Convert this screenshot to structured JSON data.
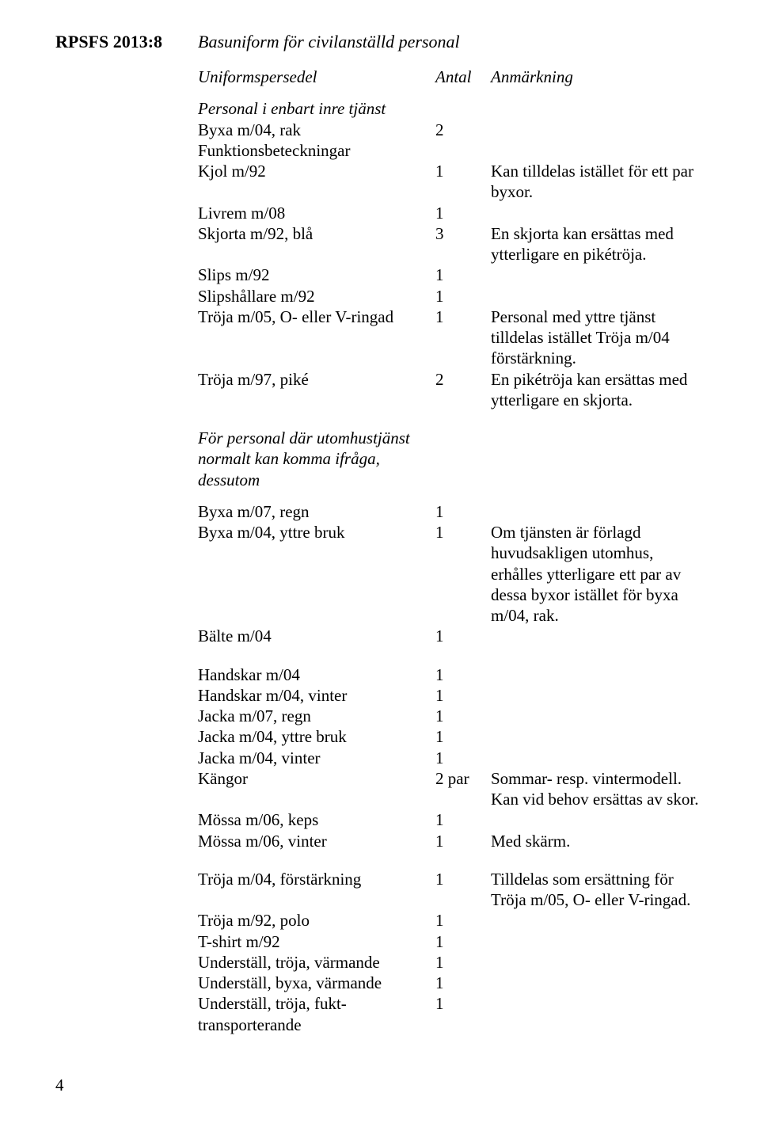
{
  "doc_id": "RPSFS 2013:8",
  "section_title": "Basuniform för civilanställd personal",
  "headers": {
    "item": "Uniformspersedel",
    "qty": "Antal",
    "note": "Anmärkning"
  },
  "subheading_a": "Personal i enbart inre tjänst",
  "rows_a": [
    {
      "item": "Byxa m/04, rak",
      "qty": "2",
      "note": ""
    },
    {
      "item": "Funktionsbeteckningar",
      "qty": "",
      "note": ""
    },
    {
      "item": "Kjol m/92",
      "qty": "1",
      "note": "Kan tilldelas istället för ett par byxor."
    },
    {
      "item": "Livrem m/08",
      "qty": "1",
      "note": ""
    },
    {
      "item": "Skjorta m/92, blå",
      "qty": "3",
      "note": "En skjorta kan ersättas med ytterligare en pikétröja."
    },
    {
      "item": "Slips m/92",
      "qty": "1",
      "note": ""
    },
    {
      "item": "Slipshållare m/92",
      "qty": "1",
      "note": ""
    },
    {
      "item": "Tröja m/05, O- eller V-ringad",
      "qty": "1",
      "note": "Personal med yttre tjänst tilldelas istället Tröja m/04 förstärkning."
    },
    {
      "item": "Tröja m/97, piké",
      "qty": "2",
      "note": "En pikétröja kan ersättas med ytterligare en skjorta."
    }
  ],
  "subheading_b": "För personal där utomhustjänst normalt kan komma ifråga, dessutom",
  "rows_b": [
    {
      "item": "Byxa m/07, regn",
      "qty": "1",
      "note": ""
    },
    {
      "item": "Byxa m/04, yttre bruk",
      "qty": "1",
      "note": "Om tjänsten är förlagd huvudsakligen utomhus, erhålles ytterligare ett par av dessa byxor istället för byxa m/04, rak."
    },
    {
      "item": "Bälte m/04",
      "qty": "1",
      "note": ""
    }
  ],
  "rows_c": [
    {
      "item": "Handskar m/04",
      "qty": "1",
      "note": ""
    },
    {
      "item": "Handskar m/04, vinter",
      "qty": "1",
      "note": ""
    },
    {
      "item": "Jacka m/07, regn",
      "qty": "1",
      "note": ""
    },
    {
      "item": "Jacka m/04, yttre bruk",
      "qty": "1",
      "note": ""
    },
    {
      "item": "Jacka m/04, vinter",
      "qty": "1",
      "note": ""
    },
    {
      "item": "Kängor",
      "qty": "2 par",
      "note": "Sommar- resp. vintermodell. Kan vid behov ersättas av skor."
    },
    {
      "item": "Mössa m/06, keps",
      "qty": "1",
      "note": ""
    },
    {
      "item": "Mössa m/06, vinter",
      "qty": "1",
      "note": "Med skärm."
    }
  ],
  "rows_d": [
    {
      "item": "Tröja m/04, förstärkning",
      "qty": "1",
      "note": "Tilldelas som ersättning för Tröja m/05, O- eller V-ringad."
    },
    {
      "item": "Tröja m/92, polo",
      "qty": "1",
      "note": ""
    },
    {
      "item": "T-shirt m/92",
      "qty": "1",
      "note": ""
    },
    {
      "item": "Underställ, tröja, värmande",
      "qty": "1",
      "note": ""
    },
    {
      "item": "Underställ, byxa, värmande",
      "qty": "1",
      "note": ""
    },
    {
      "item": "Underställ, tröja, fukt­transporterande",
      "qty": "1",
      "note": ""
    }
  ],
  "page_number": "4"
}
